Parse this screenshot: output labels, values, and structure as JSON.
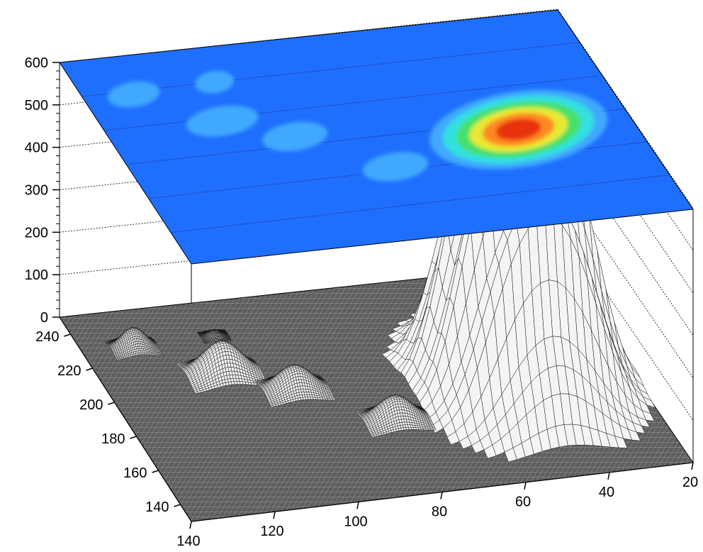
{
  "chart_data": {
    "type": "surface3d",
    "title": "",
    "xlabel": "",
    "ylabel": "",
    "zlabel": "",
    "x_ticks": [
      "140",
      "120",
      "100",
      "80",
      "60",
      "40",
      "20"
    ],
    "y_ticks": [
      "140",
      "160",
      "180",
      "200",
      "220",
      "240"
    ],
    "z_ticks": [
      "0",
      "100",
      "200",
      "300",
      "400",
      "500",
      "600"
    ],
    "xlim": [
      20,
      140
    ],
    "ylim": [
      130,
      250
    ],
    "zlim": [
      0,
      600
    ],
    "grid": true,
    "projection_plane": "top",
    "palette": [
      "#1f6fff",
      "#3fa9ff",
      "#32e0e0",
      "#47e06a",
      "#e8e830",
      "#ff8a20",
      "#e83010"
    ],
    "peaks": [
      {
        "x": 47,
        "y": 185,
        "height": 600,
        "sigma_x": 12,
        "sigma_y": 20
      },
      {
        "x": 112,
        "y": 208,
        "height": 80,
        "sigma_x": 4,
        "sigma_y": 4
      },
      {
        "x": 98,
        "y": 195,
        "height": 60,
        "sigma_x": 3.5,
        "sigma_y": 3.5
      },
      {
        "x": 80,
        "y": 172,
        "height": 60,
        "sigma_x": 3.5,
        "sigma_y": 3.5
      },
      {
        "x": 128,
        "y": 228,
        "height": 50,
        "sigma_x": 2.5,
        "sigma_y": 2.5
      },
      {
        "x": 108,
        "y": 230,
        "height": 15,
        "sigma_x": 1.5,
        "sigma_y": 1.5
      }
    ]
  }
}
